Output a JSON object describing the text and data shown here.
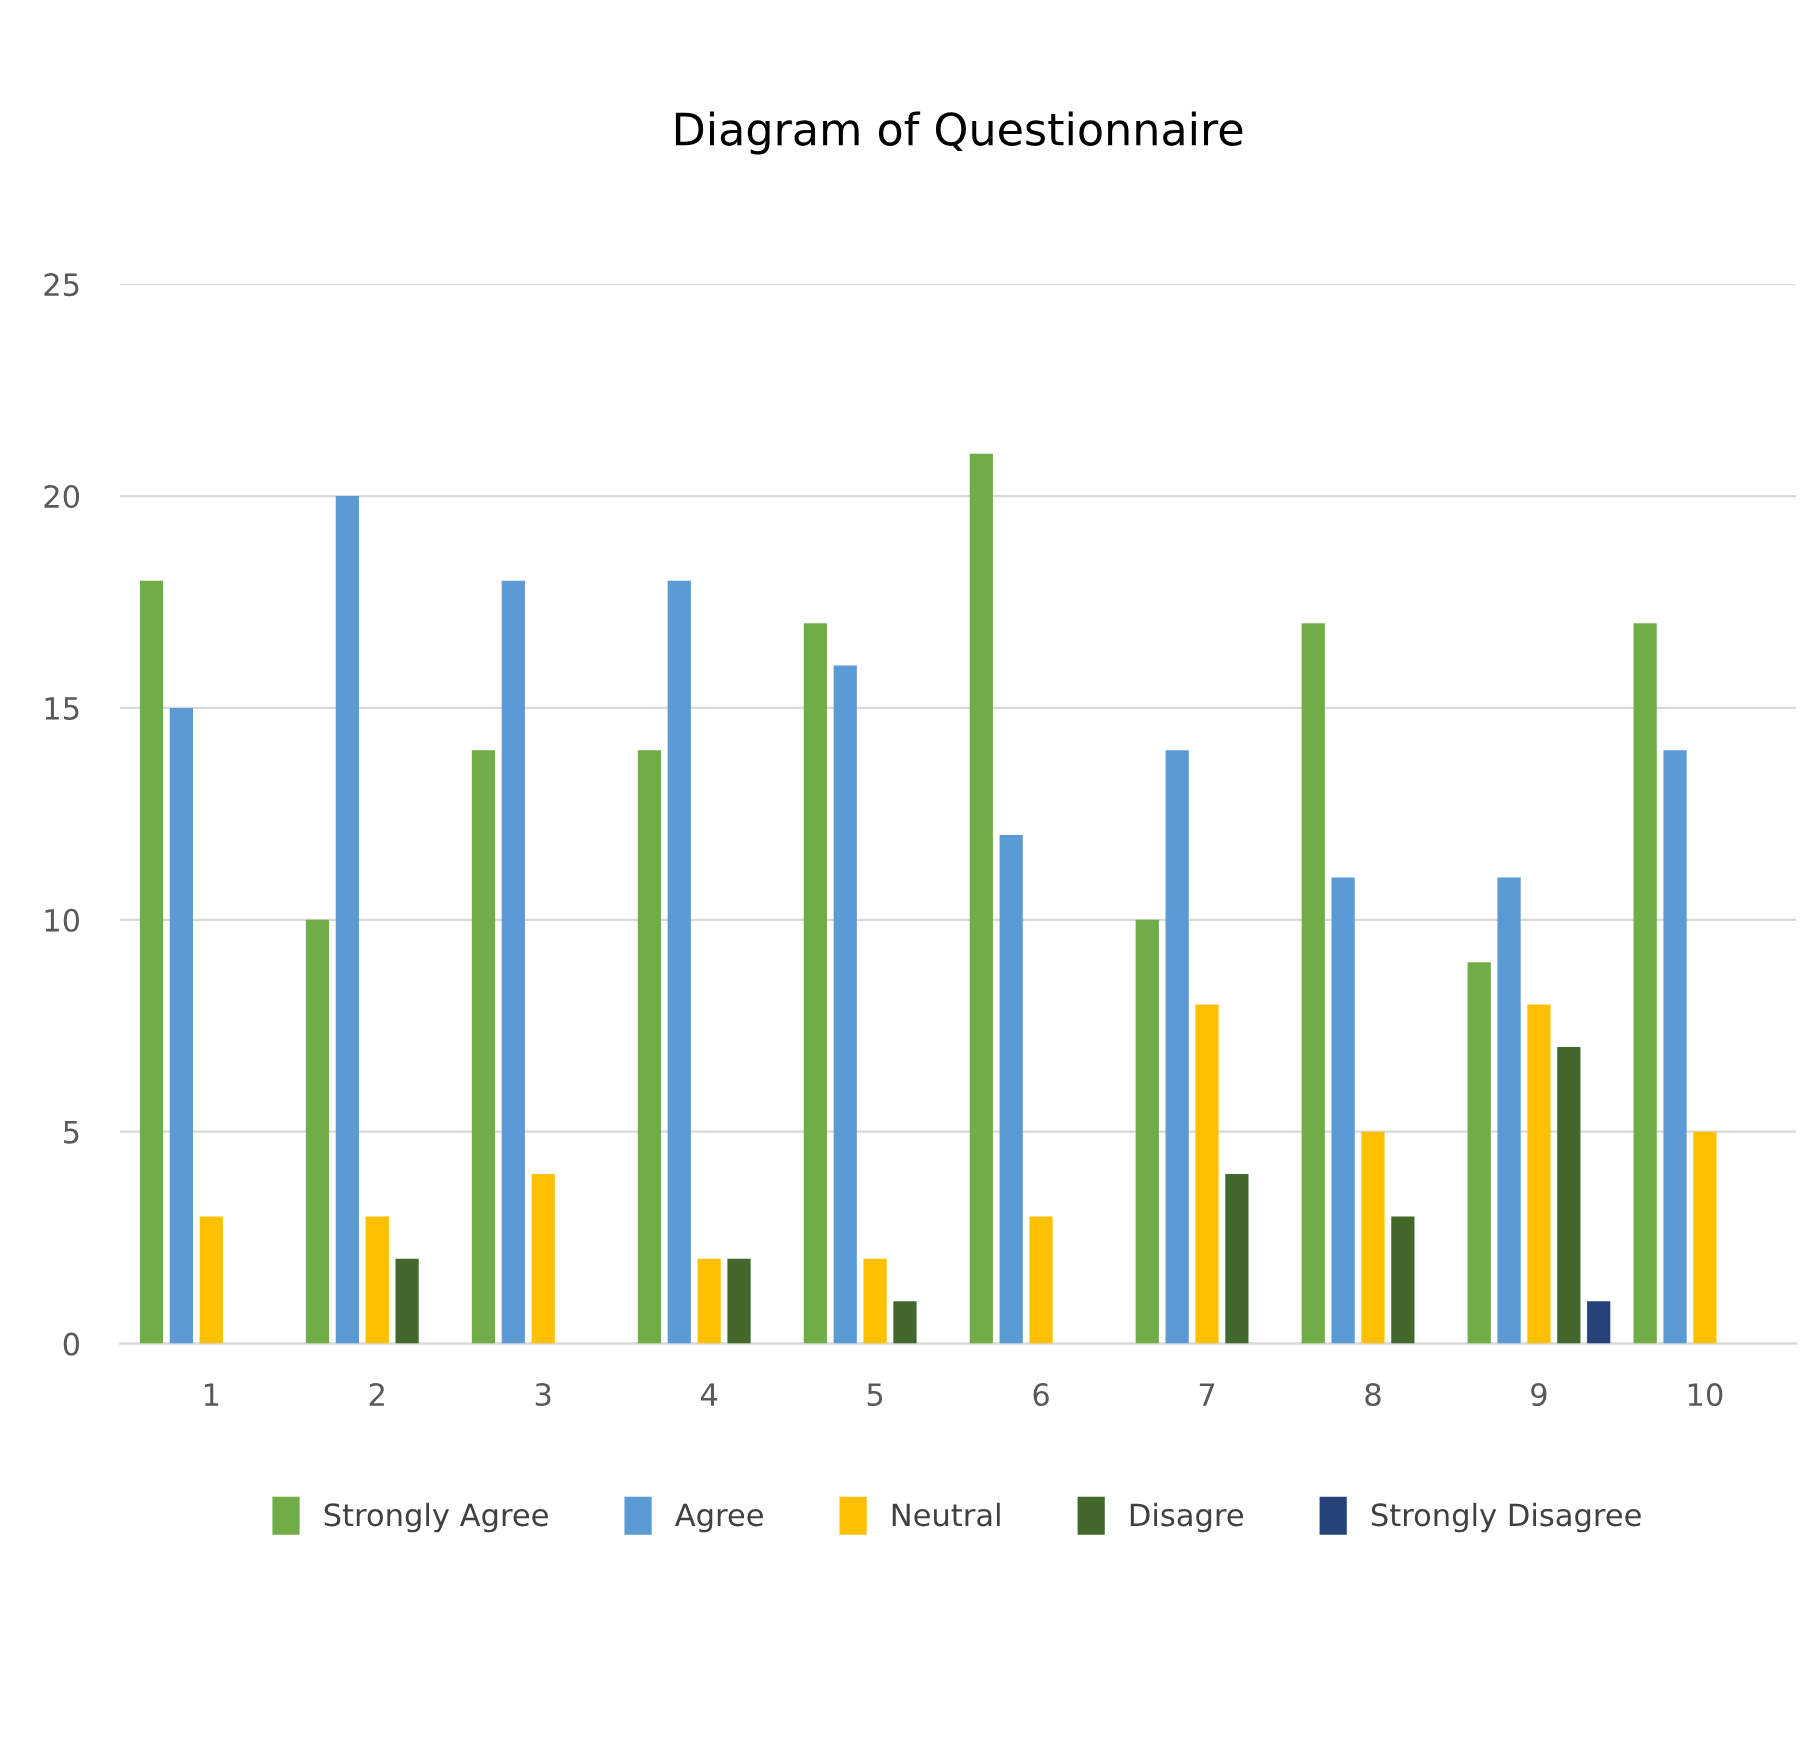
{
  "chart_data": {
    "type": "bar",
    "title": "Diagram of Questionnaire",
    "categories": [
      "1",
      "2",
      "3",
      "4",
      "5",
      "6",
      "7",
      "8",
      "9",
      "10"
    ],
    "series": [
      {
        "name": "Strongly Agree",
        "color": "#70ad47",
        "values": [
          18,
          10,
          14,
          14,
          17,
          21,
          10,
          17,
          9,
          17
        ]
      },
      {
        "name": "Agree",
        "color": "#5b9bd5",
        "values": [
          15,
          20,
          18,
          18,
          16,
          12,
          14,
          11,
          11,
          14
        ]
      },
      {
        "name": "Neutral",
        "color": "#ffc000",
        "values": [
          3,
          3,
          4,
          2,
          2,
          3,
          8,
          5,
          8,
          5
        ]
      },
      {
        "name": "Disagre",
        "color": "#43682b",
        "values": [
          0,
          2,
          0,
          2,
          1,
          0,
          4,
          3,
          7,
          0
        ]
      },
      {
        "name": "Strongly Disagree",
        "color": "#264478",
        "values": [
          0,
          0,
          0,
          0,
          0,
          0,
          0,
          0,
          1,
          0
        ]
      }
    ],
    "ylim": [
      0,
      25
    ],
    "yticks": [
      0,
      5,
      10,
      15,
      20,
      25
    ],
    "grid": "y",
    "legend": "bottom"
  }
}
